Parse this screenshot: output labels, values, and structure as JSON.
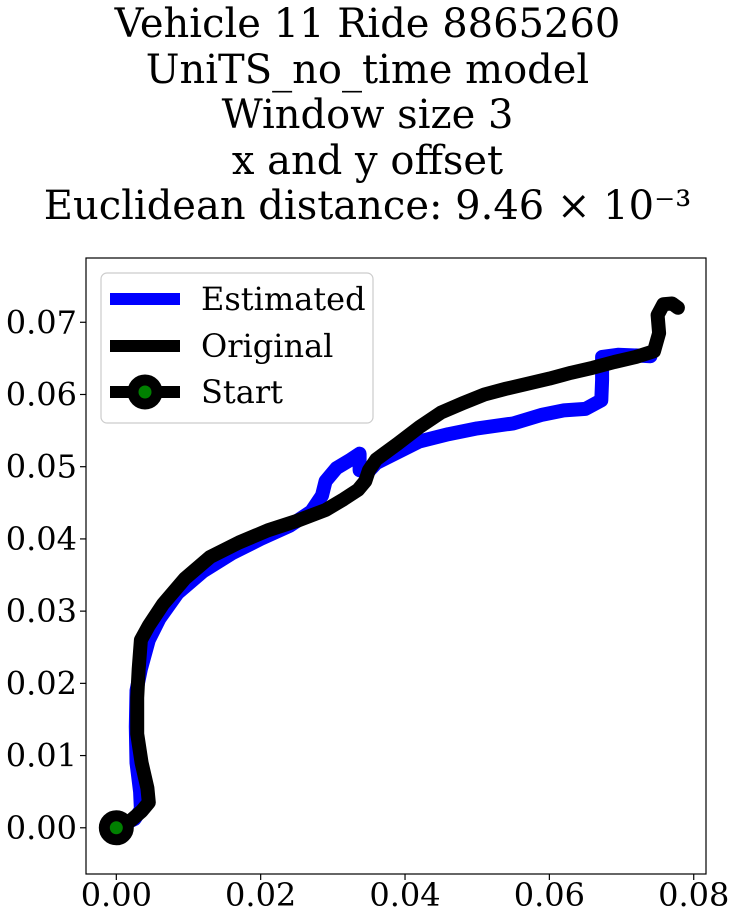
{
  "chart_data": {
    "type": "line",
    "title_lines": [
      "Vehicle 11 Ride 8865260",
      "UniTS_no_time model",
      "Window size 3",
      "x and y offset",
      "Euclidean distance: 9.46 × 10⁻³"
    ],
    "xlabel": "",
    "ylabel": "",
    "xlim": [
      -0.0042,
      0.0817
    ],
    "ylim": [
      -0.0064,
      0.0789
    ],
    "xticks": [
      0.0,
      0.02,
      0.04,
      0.06,
      0.08
    ],
    "xtick_labels": [
      "0.00",
      "0.02",
      "0.04",
      "0.06",
      "0.08"
    ],
    "yticks": [
      0.0,
      0.01,
      0.02,
      0.03,
      0.04,
      0.05,
      0.06,
      0.07
    ],
    "ytick_labels": [
      "0.00",
      "0.01",
      "0.02",
      "0.03",
      "0.04",
      "0.05",
      "0.06",
      "0.07"
    ],
    "grid": false,
    "legend_position": "upper left",
    "legend": [
      {
        "label": "Estimated",
        "color": "#0000ff",
        "marker": false
      },
      {
        "label": "Original",
        "color": "#000000",
        "marker": false
      },
      {
        "label": "Start",
        "color": "#000000",
        "marker": true,
        "marker_face": "#008000"
      }
    ],
    "series": [
      {
        "name": "Estimated",
        "color": "#0000ff",
        "points": [
          [
            0.0,
            0.0
          ],
          [
            0.0025,
            0.0012
          ],
          [
            0.0034,
            0.0025
          ],
          [
            0.0033,
            0.005
          ],
          [
            0.0028,
            0.009
          ],
          [
            0.0027,
            0.014
          ],
          [
            0.0028,
            0.019
          ],
          [
            0.0034,
            0.022
          ],
          [
            0.0045,
            0.026
          ],
          [
            0.006,
            0.029
          ],
          [
            0.0085,
            0.0325
          ],
          [
            0.012,
            0.0355
          ],
          [
            0.016,
            0.038
          ],
          [
            0.02,
            0.04
          ],
          [
            0.024,
            0.0418
          ],
          [
            0.027,
            0.0438
          ],
          [
            0.0285,
            0.046
          ],
          [
            0.029,
            0.048
          ],
          [
            0.0305,
            0.0498
          ],
          [
            0.0325,
            0.051
          ],
          [
            0.0337,
            0.0518
          ],
          [
            0.0337,
            0.0495
          ],
          [
            0.0348,
            0.0492
          ],
          [
            0.036,
            0.0505
          ],
          [
            0.039,
            0.052
          ],
          [
            0.042,
            0.0535
          ],
          [
            0.046,
            0.0545
          ],
          [
            0.05,
            0.0553
          ],
          [
            0.055,
            0.056
          ],
          [
            0.059,
            0.0572
          ],
          [
            0.062,
            0.0578
          ],
          [
            0.065,
            0.058
          ],
          [
            0.0672,
            0.0592
          ],
          [
            0.0673,
            0.062
          ],
          [
            0.0673,
            0.0652
          ],
          [
            0.0695,
            0.0655
          ],
          [
            0.0722,
            0.0654
          ],
          [
            0.074,
            0.0653
          ]
        ]
      },
      {
        "name": "Original",
        "color": "#000000",
        "points": [
          [
            0.0,
            0.0
          ],
          [
            0.002,
            0.001
          ],
          [
            0.0035,
            0.0023
          ],
          [
            0.0045,
            0.0035
          ],
          [
            0.0043,
            0.0055
          ],
          [
            0.0035,
            0.009
          ],
          [
            0.0029,
            0.013
          ],
          [
            0.0029,
            0.018
          ],
          [
            0.0031,
            0.022
          ],
          [
            0.0034,
            0.026
          ],
          [
            0.0045,
            0.028
          ],
          [
            0.0065,
            0.031
          ],
          [
            0.0095,
            0.0345
          ],
          [
            0.013,
            0.0375
          ],
          [
            0.017,
            0.0395
          ],
          [
            0.021,
            0.0412
          ],
          [
            0.025,
            0.0425
          ],
          [
            0.029,
            0.044
          ],
          [
            0.0315,
            0.0455
          ],
          [
            0.0335,
            0.0468
          ],
          [
            0.0345,
            0.048
          ],
          [
            0.035,
            0.0495
          ],
          [
            0.036,
            0.051
          ],
          [
            0.039,
            0.0532
          ],
          [
            0.042,
            0.0555
          ],
          [
            0.045,
            0.0575
          ],
          [
            0.048,
            0.0588
          ],
          [
            0.051,
            0.06
          ],
          [
            0.054,
            0.0608
          ],
          [
            0.057,
            0.0615
          ],
          [
            0.06,
            0.0622
          ],
          [
            0.063,
            0.063
          ],
          [
            0.066,
            0.0637
          ],
          [
            0.069,
            0.0645
          ],
          [
            0.072,
            0.0652
          ],
          [
            0.0745,
            0.066
          ],
          [
            0.0752,
            0.0685
          ],
          [
            0.075,
            0.071
          ],
          [
            0.0758,
            0.0725
          ],
          [
            0.077,
            0.0726
          ],
          [
            0.0778,
            0.072
          ]
        ]
      }
    ],
    "start_point": [
      0.0,
      0.0
    ]
  }
}
